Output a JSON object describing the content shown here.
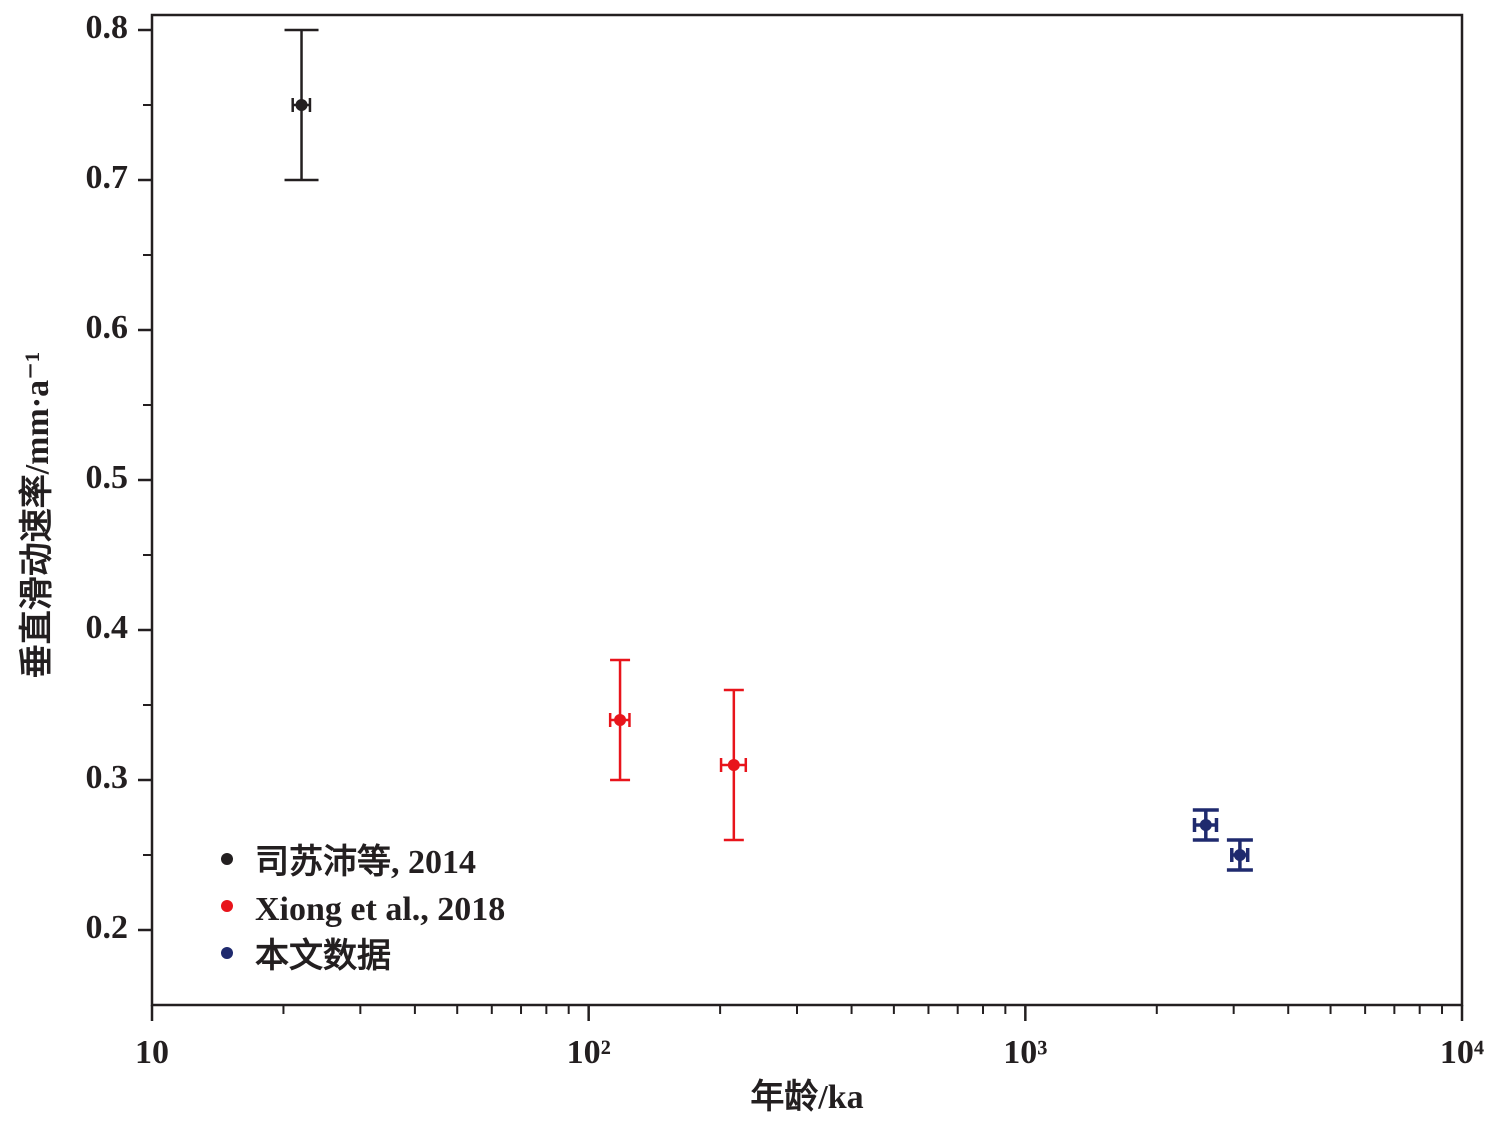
{
  "chart_data": {
    "type": "scatter",
    "xlabel": "年龄/ka",
    "ylabel": "垂直滑动速率/mm·a⁻¹",
    "xscale": "log",
    "xlim": [
      10,
      10000
    ],
    "ylim": [
      0.15,
      0.81
    ],
    "xticks": [
      10,
      {
        "value": 100,
        "label": "10²"
      },
      {
        "value": 1000,
        "label": "10³"
      },
      {
        "value": 10000,
        "label": "10⁴"
      }
    ],
    "xminorticks": [
      20,
      30,
      40,
      50,
      60,
      70,
      80,
      90,
      200,
      300,
      400,
      500,
      600,
      700,
      800,
      900,
      2000,
      3000,
      4000,
      5000,
      6000,
      7000,
      8000,
      9000
    ],
    "yticks": [
      0.2,
      0.3,
      0.4,
      0.5,
      0.6,
      0.7,
      0.8
    ],
    "yminorticks": [
      0.25,
      0.35,
      0.45,
      0.55,
      0.65,
      0.75
    ],
    "legend": "lower left",
    "series": [
      {
        "name": "司苏沛等, 2014",
        "color": "#231f20",
        "x": [
          22
        ],
        "x_err": [
          1
        ],
        "values": [
          0.75
        ],
        "y_err": [
          0.05
        ]
      },
      {
        "name": "Xiong et al., 2018",
        "color": "#e8141b",
        "x": [
          118,
          215
        ],
        "x_err": [
          6,
          14
        ],
        "values": [
          0.34,
          0.31
        ],
        "y_err": [
          0.04,
          0.05
        ]
      },
      {
        "name": "本文数据",
        "color": "#1f2a6e",
        "x": [
          2590,
          3100
        ],
        "x_err": [
          150,
          130
        ],
        "values": [
          0.27,
          0.25
        ],
        "y_err": [
          0.01,
          0.01
        ]
      }
    ]
  }
}
